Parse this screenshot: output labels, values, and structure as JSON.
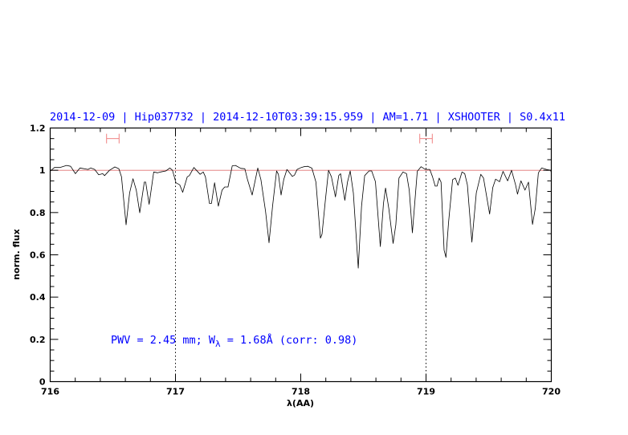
{
  "chart_data": {
    "type": "line",
    "title": "2014-12-09 | Hip037732 | 2014-12-10T03:39:15.959 | AM=1.71 | XSHOOTER | S0.4x11",
    "xlabel": "λ(AA)",
    "ylabel": "norm. flux",
    "xlim": [
      716,
      720
    ],
    "ylim": [
      0,
      1.2
    ],
    "xticks": [
      "716",
      "717",
      "718",
      "719",
      "720"
    ],
    "yticks": [
      "0",
      "0.2",
      "0.4",
      "0.6",
      "0.8",
      "1",
      "1.2"
    ],
    "x_minor_step": 0.2,
    "y_minor_step": 0.05,
    "reference_line": 1.0,
    "dotted_vlines": [
      717,
      719
    ],
    "error_bars": [
      {
        "x_min": 716.45,
        "x_max": 716.55,
        "y": 1.15
      },
      {
        "x_min": 718.95,
        "x_max": 719.05,
        "y": 1.15
      }
    ],
    "annotation": {
      "prefix": "PWV = 2.45 mm; W",
      "subscript": "λ",
      "suffix": " = 1.68Å (corr: 0.98)"
    },
    "colors": {
      "spectrum": "#000000",
      "title": "#0000ff",
      "reference": "#e07070",
      "error_bar": "#f08080"
    },
    "series": [
      {
        "name": "spectrum",
        "points": [
          [
            716.002,
            0.997
          ],
          [
            716.034,
            1.013
          ],
          [
            716.077,
            1.013
          ],
          [
            716.131,
            1.023
          ],
          [
            716.163,
            1.019
          ],
          [
            716.201,
            0.984
          ],
          [
            716.238,
            1.011
          ],
          [
            716.302,
            1.004
          ],
          [
            716.323,
            1.011
          ],
          [
            716.355,
            1.004
          ],
          [
            716.387,
            0.979
          ],
          [
            716.419,
            0.984
          ],
          [
            716.434,
            0.975
          ],
          [
            716.473,
            1.0
          ],
          [
            716.516,
            1.016
          ],
          [
            716.548,
            1.007
          ],
          [
            716.569,
            0.969
          ],
          [
            716.606,
            0.742
          ],
          [
            716.634,
            0.893
          ],
          [
            716.661,
            0.96
          ],
          [
            716.687,
            0.906
          ],
          [
            716.715,
            0.799
          ],
          [
            716.751,
            0.944
          ],
          [
            716.762,
            0.944
          ],
          [
            716.79,
            0.839
          ],
          [
            716.826,
            0.992
          ],
          [
            716.858,
            0.988
          ],
          [
            716.88,
            0.992
          ],
          [
            716.923,
            0.997
          ],
          [
            716.955,
            1.011
          ],
          [
            716.976,
            1.0
          ],
          [
            717.004,
            0.941
          ],
          [
            717.034,
            0.931
          ],
          [
            717.058,
            0.896
          ],
          [
            717.094,
            0.969
          ],
          [
            717.111,
            0.975
          ],
          [
            717.147,
            1.013
          ],
          [
            717.18,
            0.992
          ],
          [
            717.197,
            0.981
          ],
          [
            717.222,
            0.992
          ],
          [
            717.239,
            0.969
          ],
          [
            717.271,
            0.843
          ],
          [
            717.287,
            0.843
          ],
          [
            717.312,
            0.941
          ],
          [
            717.342,
            0.83
          ],
          [
            717.372,
            0.906
          ],
          [
            717.393,
            0.921
          ],
          [
            717.419,
            0.921
          ],
          [
            717.453,
            1.021
          ],
          [
            717.479,
            1.023
          ],
          [
            717.522,
            1.009
          ],
          [
            717.554,
            1.007
          ],
          [
            717.575,
            0.956
          ],
          [
            717.612,
            0.883
          ],
          [
            717.657,
            1.011
          ],
          [
            717.682,
            0.956
          ],
          [
            717.719,
            0.805
          ],
          [
            717.747,
            0.657
          ],
          [
            717.775,
            0.83
          ],
          [
            717.807,
            0.997
          ],
          [
            717.822,
            0.981
          ],
          [
            717.843,
            0.883
          ],
          [
            717.864,
            0.956
          ],
          [
            717.89,
            1.004
          ],
          [
            717.933,
            0.971
          ],
          [
            717.95,
            0.977
          ],
          [
            717.971,
            1.004
          ],
          [
            718.004,
            1.013
          ],
          [
            718.025,
            1.017
          ],
          [
            718.057,
            1.019
          ],
          [
            718.089,
            1.01
          ],
          [
            718.121,
            0.944
          ],
          [
            718.157,
            0.679
          ],
          [
            718.17,
            0.698
          ],
          [
            718.196,
            0.856
          ],
          [
            718.222,
            1.0
          ],
          [
            718.245,
            0.969
          ],
          [
            718.277,
            0.874
          ],
          [
            718.303,
            0.975
          ],
          [
            718.318,
            0.984
          ],
          [
            718.352,
            0.858
          ],
          [
            718.373,
            0.944
          ],
          [
            718.395,
            0.997
          ],
          [
            718.42,
            0.893
          ],
          [
            718.459,
            0.537
          ],
          [
            718.485,
            0.83
          ],
          [
            718.51,
            0.975
          ],
          [
            718.545,
            0.997
          ],
          [
            718.566,
            0.997
          ],
          [
            718.596,
            0.946
          ],
          [
            718.635,
            0.639
          ],
          [
            718.66,
            0.843
          ],
          [
            718.677,
            0.916
          ],
          [
            718.703,
            0.818
          ],
          [
            718.737,
            0.654
          ],
          [
            718.759,
            0.742
          ],
          [
            718.784,
            0.963
          ],
          [
            718.816,
            0.992
          ],
          [
            718.844,
            0.984
          ],
          [
            718.866,
            0.906
          ],
          [
            718.891,
            0.704
          ],
          [
            718.93,
            0.995
          ],
          [
            718.96,
            1.017
          ],
          [
            718.994,
            1.004
          ],
          [
            719.03,
            1.004
          ],
          [
            719.052,
            0.969
          ],
          [
            719.073,
            0.925
          ],
          [
            719.088,
            0.925
          ],
          [
            719.105,
            0.963
          ],
          [
            719.12,
            0.944
          ],
          [
            719.144,
            0.622
          ],
          [
            719.159,
            0.588
          ],
          [
            719.18,
            0.755
          ],
          [
            719.212,
            0.956
          ],
          [
            719.234,
            0.963
          ],
          [
            719.255,
            0.929
          ],
          [
            719.287,
            0.992
          ],
          [
            719.309,
            0.984
          ],
          [
            719.33,
            0.931
          ],
          [
            719.366,
            0.66
          ],
          [
            719.401,
            0.893
          ],
          [
            719.437,
            0.981
          ],
          [
            719.459,
            0.963
          ],
          [
            719.508,
            0.793
          ],
          [
            719.533,
            0.918
          ],
          [
            719.555,
            0.958
          ],
          [
            719.587,
            0.946
          ],
          [
            719.615,
            0.995
          ],
          [
            719.651,
            0.95
          ],
          [
            719.683,
            1.0
          ],
          [
            719.715,
            0.931
          ],
          [
            719.73,
            0.887
          ],
          [
            719.758,
            0.95
          ],
          [
            719.79,
            0.906
          ],
          [
            719.818,
            0.944
          ],
          [
            719.85,
            0.744
          ],
          [
            719.872,
            0.818
          ],
          [
            719.897,
            0.988
          ],
          [
            719.923,
            1.011
          ],
          [
            719.961,
            1.004
          ],
          [
            719.994,
            1.0
          ],
          [
            720.0,
            0.99
          ]
        ]
      }
    ]
  }
}
